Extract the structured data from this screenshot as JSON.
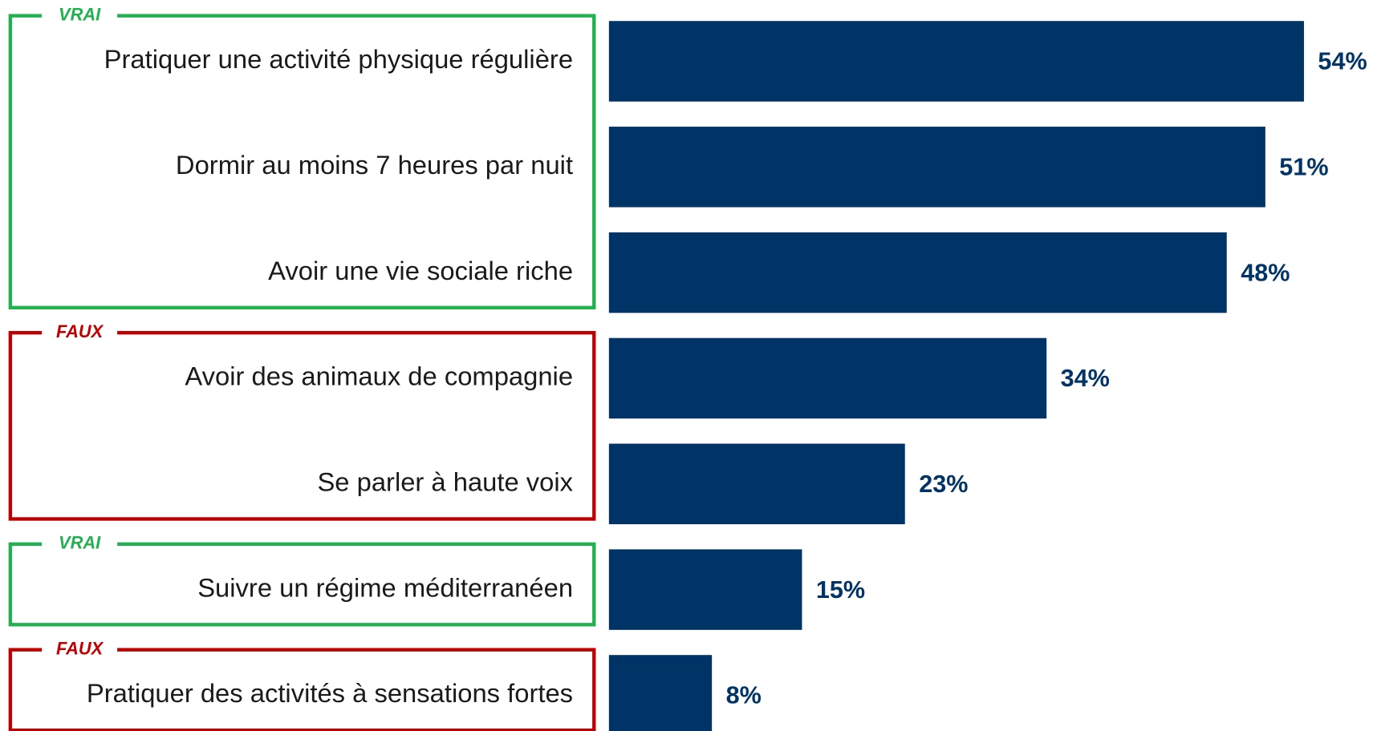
{
  "chart_data": {
    "type": "bar",
    "orientation": "horizontal",
    "bar_color": "#003466",
    "value_label_color": "#003466",
    "groups": [
      {
        "label": "VRAI",
        "color": "#21b24f",
        "categories": [
          "Pratiquer une activité physique régulière",
          "Dormir au moins 7 heures par nuit",
          "Avoir une vie sociale riche"
        ],
        "values": [
          54,
          51,
          48
        ],
        "value_labels": [
          "54%",
          "51%",
          "48%"
        ]
      },
      {
        "label": "FAUX",
        "color": "#c00000",
        "categories": [
          "Avoir des animaux de compagnie",
          "Se parler à haute voix"
        ],
        "values": [
          34,
          23
        ],
        "value_labels": [
          "34%",
          "23%"
        ]
      },
      {
        "label": "VRAI",
        "color": "#21b24f",
        "categories": [
          "Suivre un régime méditerranéen"
        ],
        "values": [
          15
        ],
        "value_labels": [
          "15%"
        ]
      },
      {
        "label": "FAUX",
        "color": "#c00000",
        "categories": [
          "Pratiquer des activités à sensations fortes"
        ],
        "values": [
          8
        ],
        "value_labels": [
          "8%"
        ]
      }
    ]
  }
}
